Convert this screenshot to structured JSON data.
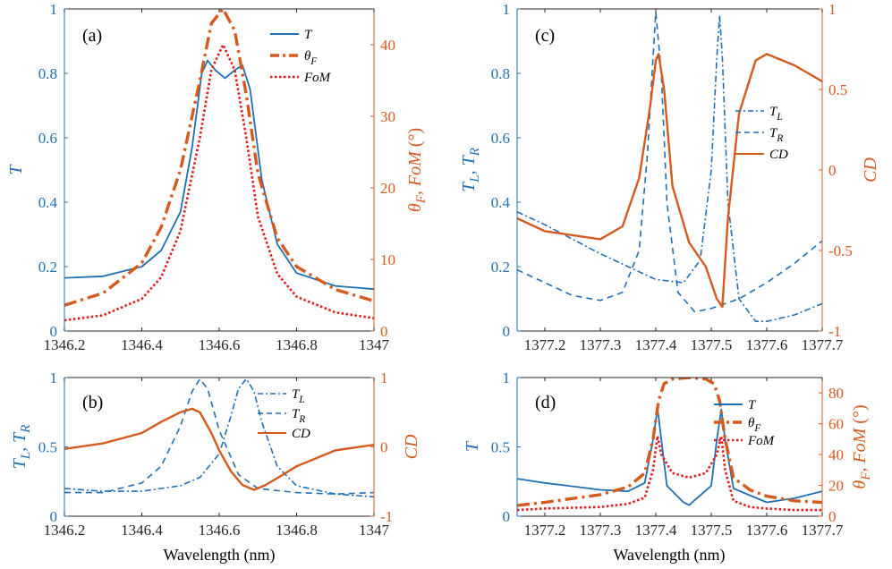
{
  "colors": {
    "blue": "#1f6fb5",
    "orange": "#d55a1e",
    "red": "#e31a1c",
    "axis": "#262626"
  },
  "xlabel": "Wavelength (nm)",
  "chart_data": [
    {
      "id": "a",
      "type": "line",
      "panel_label": "(a)",
      "xlim": [
        1346.2,
        1347
      ],
      "xticks": [
        1346.2,
        1346.4,
        1346.6,
        1346.8,
        1347
      ],
      "xtick_labels": [
        "1346.2",
        "1346.4",
        "1346.6",
        "1346.8",
        "1347"
      ],
      "ylim_left": [
        0,
        1
      ],
      "yticks_left": [
        0,
        0.2,
        0.4,
        0.6,
        0.8,
        1
      ],
      "ytick_labels_left": [
        "0",
        "0.2",
        "0.4",
        "0.6",
        "0.8",
        "1"
      ],
      "ylabel_left": "T",
      "ylim_right": [
        0,
        45
      ],
      "yticks_right": [
        0,
        10,
        20,
        30,
        40
      ],
      "ytick_labels_right": [
        "0",
        "10",
        "20",
        "30",
        "40"
      ],
      "ylabel_right": "θF, FoM (°)",
      "legend": [
        "T",
        "θF",
        "FoM"
      ],
      "series": [
        {
          "name": "T",
          "axis": "left",
          "style": "solid",
          "color": "blue",
          "x": [
            1346.2,
            1346.3,
            1346.4,
            1346.45,
            1346.5,
            1346.53,
            1346.555,
            1346.57,
            1346.59,
            1346.615,
            1346.64,
            1346.66,
            1346.68,
            1346.71,
            1346.75,
            1346.8,
            1346.9,
            1347
          ],
          "y": [
            0.165,
            0.17,
            0.2,
            0.25,
            0.37,
            0.57,
            0.8,
            0.84,
            0.81,
            0.785,
            0.81,
            0.825,
            0.75,
            0.47,
            0.27,
            0.18,
            0.14,
            0.13
          ]
        },
        {
          "name": "θF",
          "axis": "right",
          "style": "dashdot",
          "color": "orange",
          "x": [
            1346.2,
            1346.3,
            1346.4,
            1346.45,
            1346.5,
            1346.55,
            1346.58,
            1346.61,
            1346.64,
            1346.67,
            1346.7,
            1346.75,
            1346.8,
            1346.9,
            1347
          ],
          "y": [
            3.6,
            5.3,
            9.5,
            14.5,
            22.5,
            35,
            43,
            45,
            42,
            33,
            22,
            13,
            9,
            5.8,
            4.2
          ]
        },
        {
          "name": "FoM",
          "axis": "right",
          "style": "dotted",
          "color": "red",
          "x": [
            1346.2,
            1346.3,
            1346.4,
            1346.45,
            1346.5,
            1346.55,
            1346.58,
            1346.61,
            1346.64,
            1346.67,
            1346.7,
            1346.75,
            1346.8,
            1346.9,
            1347
          ],
          "y": [
            1.5,
            2.2,
            4.5,
            7.5,
            14,
            27,
            36.5,
            40,
            36.5,
            27,
            16,
            8,
            4.8,
            2.6,
            1.8
          ]
        }
      ]
    },
    {
      "id": "b",
      "type": "line",
      "panel_label": "(b)",
      "xlim": [
        1346.2,
        1347
      ],
      "xticks": [
        1346.2,
        1346.4,
        1346.6,
        1346.8,
        1347
      ],
      "xtick_labels": [
        "1346.2",
        "1346.4",
        "1346.6",
        "1346.8",
        "1347"
      ],
      "ylim_left": [
        0,
        1
      ],
      "yticks_left": [
        0,
        0.5,
        1
      ],
      "ytick_labels_left": [
        "0",
        "0.5",
        "1"
      ],
      "ylabel_left": "TL, TR",
      "ylim_right": [
        -1,
        1
      ],
      "yticks_right": [
        -1,
        0,
        1
      ],
      "ytick_labels_right": [
        "-1",
        "0",
        "1"
      ],
      "ylabel_right": "CD",
      "legend": [
        "TL",
        "TR",
        "CD"
      ],
      "series": [
        {
          "name": "TL",
          "axis": "left",
          "style": "dashdot",
          "color": "blue",
          "x": [
            1346.2,
            1346.3,
            1346.4,
            1346.5,
            1346.55,
            1346.6,
            1346.63,
            1346.65,
            1346.67,
            1346.69,
            1346.71,
            1346.75,
            1346.8,
            1346.9,
            1347
          ],
          "y": [
            0.2,
            0.18,
            0.18,
            0.22,
            0.28,
            0.45,
            0.72,
            0.92,
            0.99,
            0.9,
            0.68,
            0.36,
            0.22,
            0.16,
            0.14
          ]
        },
        {
          "name": "TR",
          "axis": "left",
          "style": "dashed",
          "color": "blue",
          "x": [
            1346.2,
            1346.3,
            1346.4,
            1346.45,
            1346.5,
            1346.53,
            1346.55,
            1346.57,
            1346.6,
            1346.65,
            1346.7,
            1346.8,
            1346.9,
            1347
          ],
          "y": [
            0.17,
            0.17,
            0.24,
            0.36,
            0.65,
            0.9,
            0.99,
            0.92,
            0.62,
            0.3,
            0.2,
            0.17,
            0.16,
            0.17
          ]
        },
        {
          "name": "CD",
          "axis": "right",
          "style": "solid",
          "color": "orange",
          "x": [
            1346.2,
            1346.3,
            1346.4,
            1346.45,
            1346.5,
            1346.53,
            1346.55,
            1346.58,
            1346.6,
            1346.63,
            1346.66,
            1346.69,
            1346.72,
            1346.75,
            1346.8,
            1346.9,
            1347
          ],
          "y": [
            -0.03,
            0.05,
            0.2,
            0.36,
            0.5,
            0.55,
            0.5,
            0.2,
            -0.05,
            -0.35,
            -0.55,
            -0.62,
            -0.55,
            -0.45,
            -0.28,
            -0.05,
            0.03
          ]
        }
      ]
    },
    {
      "id": "c",
      "type": "line",
      "panel_label": "(c)",
      "xlim": [
        1377.15,
        1377.7
      ],
      "xticks": [
        1377.2,
        1377.3,
        1377.4,
        1377.5,
        1377.6,
        1377.7
      ],
      "xtick_labels": [
        "1377.2",
        "1377.3",
        "1377.4",
        "1377.5",
        "1377.6",
        "1377.7"
      ],
      "ylim_left": [
        0,
        1
      ],
      "yticks_left": [
        0,
        0.2,
        0.4,
        0.6,
        0.8,
        1
      ],
      "ytick_labels_left": [
        "0",
        "0.2",
        "0.4",
        "0.6",
        "0.8",
        "1"
      ],
      "ylabel_left": "TL, TR",
      "ylim_right": [
        -1,
        1
      ],
      "yticks_right": [
        -1,
        -0.5,
        0,
        0.5,
        1
      ],
      "ytick_labels_right": [
        "-1",
        "-0.5",
        "0",
        "0.5",
        "1"
      ],
      "ylabel_right": "CD",
      "legend": [
        "TL",
        "TR",
        "CD"
      ],
      "series": [
        {
          "name": "TL",
          "axis": "left",
          "style": "dashdot",
          "color": "blue",
          "x": [
            1377.15,
            1377.2,
            1377.3,
            1377.4,
            1377.45,
            1377.48,
            1377.5,
            1377.51,
            1377.515,
            1377.52,
            1377.53,
            1377.55,
            1377.58,
            1377.6,
            1377.65,
            1377.7
          ],
          "y": [
            0.37,
            0.33,
            0.24,
            0.16,
            0.15,
            0.22,
            0.5,
            0.85,
            0.98,
            0.85,
            0.4,
            0.1,
            0.03,
            0.03,
            0.05,
            0.085
          ]
        },
        {
          "name": "TR",
          "axis": "left",
          "style": "dashed",
          "color": "blue",
          "x": [
            1377.15,
            1377.2,
            1377.25,
            1377.3,
            1377.34,
            1377.37,
            1377.385,
            1377.395,
            1377.4,
            1377.41,
            1377.42,
            1377.44,
            1377.47,
            1377.5,
            1377.55,
            1377.6,
            1377.65,
            1377.7
          ],
          "y": [
            0.19,
            0.15,
            0.11,
            0.095,
            0.12,
            0.25,
            0.55,
            0.85,
            0.99,
            0.8,
            0.4,
            0.12,
            0.06,
            0.07,
            0.1,
            0.15,
            0.21,
            0.28
          ]
        },
        {
          "name": "CD",
          "axis": "right",
          "style": "solid",
          "color": "orange",
          "x": [
            1377.15,
            1377.2,
            1377.3,
            1377.34,
            1377.37,
            1377.39,
            1377.4,
            1377.405,
            1377.415,
            1377.43,
            1377.46,
            1377.49,
            1377.51,
            1377.52,
            1377.53,
            1377.55,
            1377.58,
            1377.6,
            1377.65,
            1377.7
          ],
          "y": [
            -0.3,
            -0.38,
            -0.43,
            -0.35,
            -0.05,
            0.4,
            0.68,
            0.72,
            0.5,
            -0.1,
            -0.45,
            -0.6,
            -0.8,
            -0.85,
            -0.3,
            0.35,
            0.68,
            0.72,
            0.65,
            0.55
          ]
        }
      ]
    },
    {
      "id": "d",
      "type": "line",
      "panel_label": "(d)",
      "xlim": [
        1377.15,
        1377.7
      ],
      "xticks": [
        1377.2,
        1377.3,
        1377.4,
        1377.5,
        1377.6,
        1377.7
      ],
      "xtick_labels": [
        "1377.2",
        "1377.3",
        "1377.4",
        "1377.5",
        "1377.6",
        "1377.7"
      ],
      "ylim_left": [
        0,
        1
      ],
      "yticks_left": [
        0,
        0.5,
        1
      ],
      "ytick_labels_left": [
        "0",
        "0.5",
        "1"
      ],
      "ylabel_left": "T",
      "ylim_right": [
        0,
        90
      ],
      "yticks_right": [
        0,
        20,
        40,
        60,
        80
      ],
      "ytick_labels_right": [
        "0",
        "20",
        "40",
        "60",
        "80"
      ],
      "ylabel_right": "θF, FoM (°)",
      "legend": [
        "T",
        "θF",
        "FoM"
      ],
      "series": [
        {
          "name": "T",
          "axis": "left",
          "style": "solid",
          "color": "blue",
          "x": [
            1377.15,
            1377.2,
            1377.3,
            1377.35,
            1377.38,
            1377.395,
            1377.403,
            1377.41,
            1377.42,
            1377.45,
            1377.46,
            1377.5,
            1377.51,
            1377.518,
            1377.525,
            1377.54,
            1377.6,
            1377.65,
            1377.7
          ],
          "y": [
            0.27,
            0.24,
            0.19,
            0.18,
            0.24,
            0.55,
            0.78,
            0.55,
            0.22,
            0.1,
            0.08,
            0.22,
            0.55,
            0.77,
            0.55,
            0.2,
            0.1,
            0.13,
            0.18
          ]
        },
        {
          "name": "θF",
          "axis": "right",
          "style": "dashdot",
          "color": "orange",
          "x": [
            1377.15,
            1377.2,
            1377.3,
            1377.35,
            1377.38,
            1377.395,
            1377.405,
            1377.415,
            1377.43,
            1377.46,
            1377.49,
            1377.505,
            1377.515,
            1377.525,
            1377.54,
            1377.57,
            1377.6,
            1377.65,
            1377.7
          ],
          "y": [
            7,
            9,
            14,
            19,
            28,
            50,
            75,
            86,
            89,
            90,
            89,
            86,
            75,
            50,
            25,
            17,
            13,
            10,
            9
          ]
        },
        {
          "name": "FoM",
          "axis": "right",
          "style": "dotted",
          "color": "red",
          "x": [
            1377.15,
            1377.2,
            1377.3,
            1377.35,
            1377.38,
            1377.395,
            1377.403,
            1377.41,
            1377.43,
            1377.46,
            1377.49,
            1377.51,
            1377.518,
            1377.525,
            1377.54,
            1377.57,
            1377.6,
            1377.65,
            1377.7
          ],
          "y": [
            4,
            5,
            6,
            8,
            12,
            30,
            52,
            40,
            28,
            25,
            28,
            40,
            52,
            30,
            10,
            6,
            5,
            4,
            4
          ]
        }
      ]
    }
  ]
}
